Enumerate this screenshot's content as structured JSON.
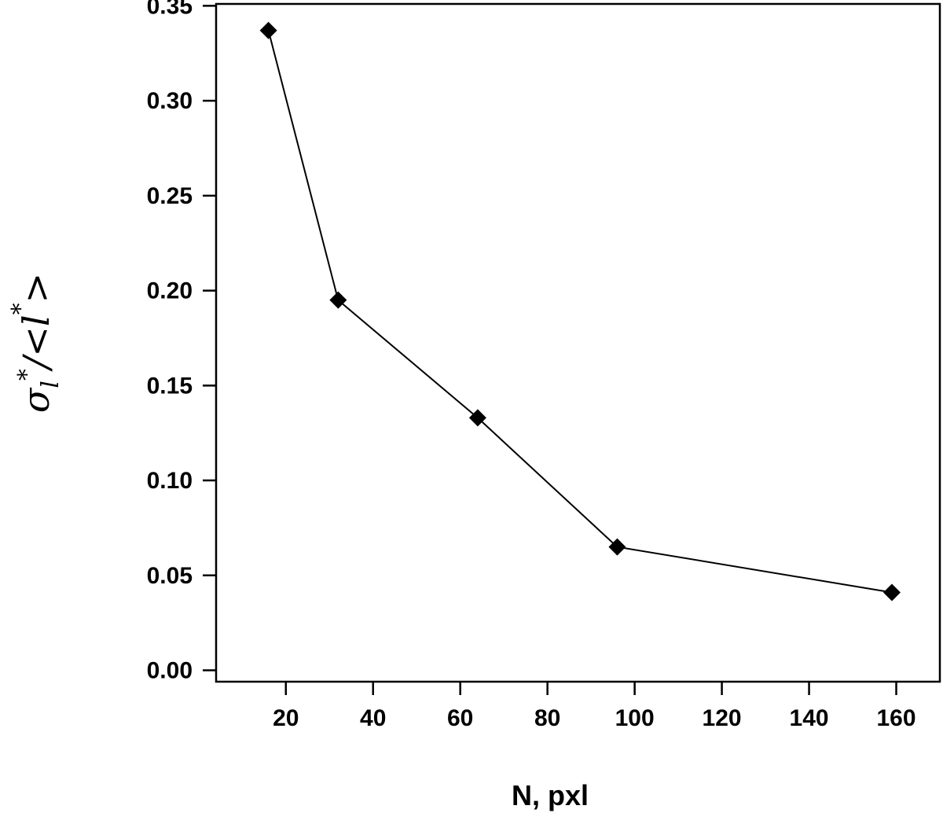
{
  "chart_data": {
    "type": "line",
    "title": "",
    "xlabel": "N, pxl",
    "ylabel": {
      "sigma": "σ",
      "sub": "l",
      "star": "*",
      "rest": "/<",
      "l": "l",
      "close": ">"
    },
    "xlim": [
      4,
      170
    ],
    "ylim": [
      -0.006,
      0.351
    ],
    "xticks": [
      20,
      40,
      60,
      80,
      100,
      120,
      140,
      160
    ],
    "yticks": [
      0.0,
      0.05,
      0.1,
      0.15,
      0.2,
      0.25,
      0.3,
      0.35
    ],
    "ytick_labels": [
      "0.00",
      "0.05",
      "0.10",
      "0.15",
      "0.20",
      "0.25",
      "0.30",
      "0.35"
    ],
    "grid": false,
    "legend": "none",
    "marker": "diamond",
    "color": "#000000",
    "series": [
      {
        "x": [
          16,
          32,
          64,
          96,
          159
        ],
        "y": [
          0.337,
          0.195,
          0.133,
          0.065,
          0.041
        ]
      }
    ]
  }
}
